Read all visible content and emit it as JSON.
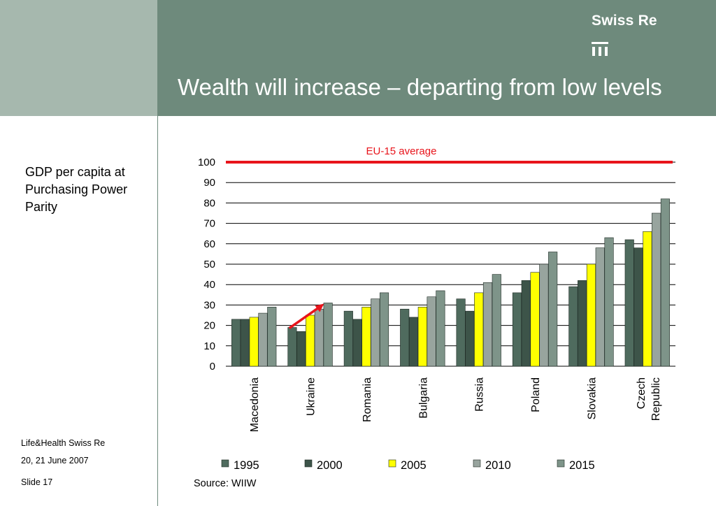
{
  "header": {
    "brand": "Swiss Re",
    "title": "Wealth will increase – departing from low levels"
  },
  "subtitle": "GDP per capita at Purchasing Power Parity",
  "footer": {
    "line1": "Life&Health Swiss Re",
    "line2": "20, 21 June 2007",
    "line3": "Slide 17"
  },
  "source": "Source: WIIW",
  "chart_data": {
    "type": "bar",
    "categories": [
      "Macedonia",
      "Ukraine",
      "Romania",
      "Bulgaria",
      "Russia",
      "Poland",
      "Slovakia",
      "Czech Republic"
    ],
    "category_lines": [
      [
        "Macedonia"
      ],
      [
        "Ukraine"
      ],
      [
        "Romania"
      ],
      [
        "Bulgaria"
      ],
      [
        "Russia"
      ],
      [
        "Poland"
      ],
      [
        "Slovakia"
      ],
      [
        "Czech",
        "Republic"
      ]
    ],
    "series": [
      {
        "name": "1995",
        "color": "#4f6b5e",
        "values": [
          23,
          19,
          27,
          28,
          33,
          36,
          39,
          62
        ]
      },
      {
        "name": "2000",
        "color": "#3d5449",
        "values": [
          23,
          17,
          23,
          24,
          27,
          42,
          42,
          58
        ]
      },
      {
        "name": "2005",
        "color": "#ffff00",
        "values": [
          24,
          25,
          29,
          29,
          36,
          46,
          50,
          66
        ]
      },
      {
        "name": "2010",
        "color": "#98a49e",
        "values": [
          26,
          28,
          33,
          34,
          41,
          50,
          58,
          75
        ]
      },
      {
        "name": "2015",
        "color": "#7e9489",
        "values": [
          29,
          31,
          36,
          37,
          45,
          56,
          63,
          82
        ]
      }
    ],
    "ylim": [
      0,
      100
    ],
    "yticks": [
      0,
      10,
      20,
      30,
      40,
      50,
      60,
      70,
      80,
      90,
      100
    ],
    "reference_line": {
      "label": "EU-15 average",
      "value": 100,
      "color": "#e8141b"
    },
    "annotation_arrow": {
      "category": "Ukraine",
      "color": "#e8141b"
    },
    "legend_position": "bottom",
    "grid": true
  }
}
